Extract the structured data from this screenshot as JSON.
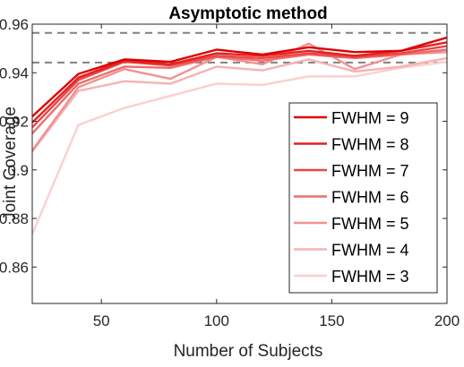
{
  "chart_data": {
    "type": "line",
    "title": "Asymptotic method",
    "xlabel": "Number of Subjects",
    "ylabel": "Joint Coverage",
    "xlim": [
      20,
      200
    ],
    "ylim": [
      0.845,
      0.96
    ],
    "xticks": [
      50,
      100,
      150,
      200
    ],
    "yticks": [
      0.86,
      0.88,
      0.9,
      0.92,
      0.94,
      0.96
    ],
    "ytick_labels": [
      "0.86",
      "0.88",
      "0.9",
      "0.92",
      "0.94",
      "0.96"
    ],
    "grid": false,
    "legend_position": "bottom-right",
    "x": [
      20,
      40,
      60,
      80,
      100,
      120,
      140,
      160,
      180,
      200
    ],
    "reference_lines": [
      0.9564,
      0.9442
    ],
    "reference_color": "#808080",
    "series": [
      {
        "name": "FWHM = 9",
        "color": "#e00000",
        "values": [
          0.922,
          0.9395,
          0.9455,
          0.9445,
          0.9495,
          0.9475,
          0.9505,
          0.9485,
          0.949,
          0.9545
        ]
      },
      {
        "name": "FWHM = 8",
        "color": "#e52020",
        "values": [
          0.9195,
          0.938,
          0.945,
          0.9435,
          0.948,
          0.947,
          0.949,
          0.947,
          0.949,
          0.9525
        ]
      },
      {
        "name": "FWHM = 7",
        "color": "#ea4545",
        "values": [
          0.9175,
          0.937,
          0.9445,
          0.943,
          0.947,
          0.946,
          0.948,
          0.9465,
          0.948,
          0.951
        ]
      },
      {
        "name": "FWHM = 6",
        "color": "#ee6c6c",
        "values": [
          0.915,
          0.9355,
          0.9425,
          0.942,
          0.9465,
          0.945,
          0.9475,
          0.946,
          0.9475,
          0.9495
        ]
      },
      {
        "name": "FWHM = 5",
        "color": "#f29191",
        "values": [
          0.908,
          0.934,
          0.9415,
          0.9375,
          0.9465,
          0.9435,
          0.952,
          0.9415,
          0.9475,
          0.9485
        ]
      },
      {
        "name": "FWHM = 4",
        "color": "#f6b2b2",
        "values": [
          0.9075,
          0.9325,
          0.9365,
          0.9355,
          0.9425,
          0.941,
          0.9455,
          0.9405,
          0.9425,
          0.946
        ]
      },
      {
        "name": "FWHM = 3",
        "color": "#fad0d0",
        "values": [
          0.8735,
          0.9185,
          0.9255,
          0.9305,
          0.9355,
          0.935,
          0.9385,
          0.9385,
          0.942,
          0.9445
        ]
      }
    ]
  }
}
